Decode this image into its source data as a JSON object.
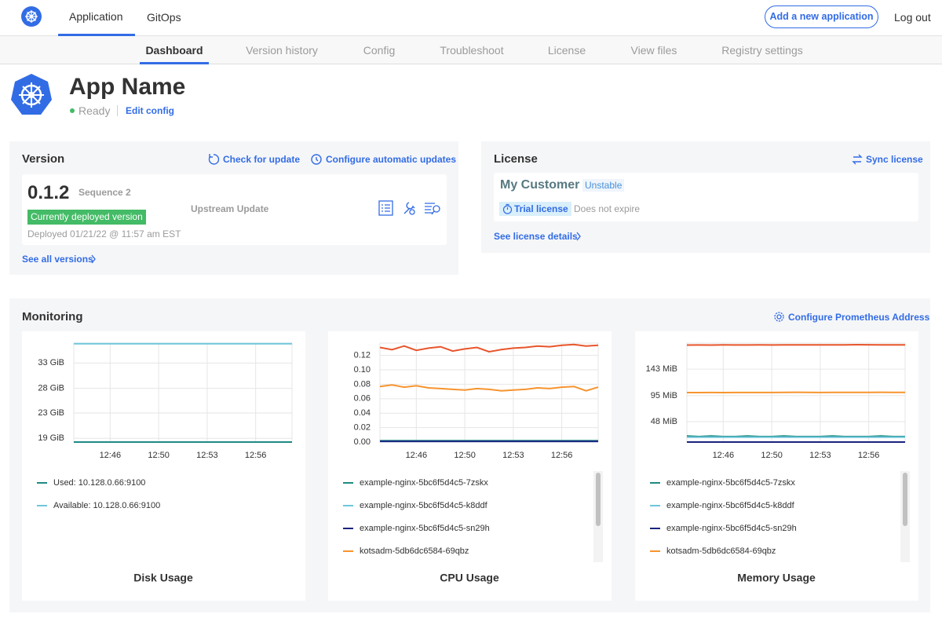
{
  "nav": {
    "tabs": [
      "Application",
      "GitOps"
    ],
    "add_button": "Add a new application",
    "logout": "Log out"
  },
  "subnav": [
    "Dashboard",
    "Version history",
    "Config",
    "Troubleshoot",
    "License",
    "View files",
    "Registry settings"
  ],
  "app": {
    "name": "App Name",
    "status": "Ready",
    "edit": "Edit config"
  },
  "version": {
    "title": "Version",
    "check": "Check for update",
    "configure": "Configure automatic updates",
    "number": "0.1.2",
    "sequence": "Sequence 2",
    "badge": "Currently deployed version",
    "deployed": "Deployed 01/21/22 @ 11:57 am EST",
    "upstream": "Upstream Update",
    "see_all": "See all versions"
  },
  "license": {
    "title": "License",
    "sync": "Sync license",
    "customer": "My Customer",
    "channel": "Unstable",
    "type": "Trial license",
    "expiry": "Does not expire",
    "details": "See license details"
  },
  "monitoring": {
    "title": "Monitoring",
    "configure": "Configure Prometheus Address"
  },
  "chart_data": [
    {
      "type": "line",
      "title": "Disk Usage",
      "grid": true,
      "x": [
        null,
        null,
        null,
        "12:46",
        null,
        null,
        null,
        "12:50",
        null,
        null,
        null,
        "12:53",
        null,
        null,
        null,
        "12:56",
        null,
        null,
        null
      ],
      "ylim": [
        17.9,
        36.3
      ],
      "yticks": [
        {
          "value": 18.6,
          "label": "19 GiB"
        },
        {
          "value": 23.3,
          "label": "23 GiB"
        },
        {
          "value": 27.9,
          "label": "28 GiB"
        },
        {
          "value": 32.6,
          "label": "33 GiB"
        }
      ],
      "series": [
        {
          "name": "Used: 10.128.0.66:9100",
          "color": "#1e8a84",
          "values": [
            17.9,
            17.9,
            17.9,
            17.9,
            17.9,
            17.9,
            17.9,
            17.9,
            17.9,
            17.9,
            17.9,
            17.9,
            17.9,
            17.9,
            17.9,
            17.9,
            17.9,
            17.9,
            17.9
          ]
        },
        {
          "name": "Available: 10.128.0.66:9100",
          "color": "#6ec6d9",
          "values": [
            36.2,
            36.2,
            36.2,
            36.2,
            36.2,
            36.2,
            36.2,
            36.2,
            36.2,
            36.2,
            36.2,
            36.2,
            36.2,
            36.2,
            36.2,
            36.2,
            36.2,
            36.2,
            36.2
          ]
        }
      ]
    },
    {
      "type": "line",
      "title": "CPU Usage",
      "grid": true,
      "x": [
        null,
        null,
        null,
        "12:46",
        null,
        null,
        null,
        "12:50",
        null,
        null,
        null,
        "12:53",
        null,
        null,
        null,
        "12:56",
        null,
        null,
        null
      ],
      "ylim": [
        0,
        0.137
      ],
      "yticks": [
        {
          "value": 0,
          "label": "0.00"
        },
        {
          "value": 0.02,
          "label": "0.02"
        },
        {
          "value": 0.04,
          "label": "0.04"
        },
        {
          "value": 0.06,
          "label": "0.06"
        },
        {
          "value": 0.08,
          "label": "0.08"
        },
        {
          "value": 0.1,
          "label": "0.10"
        },
        {
          "value": 0.12,
          "label": "0.12"
        }
      ],
      "series": [
        {
          "name": "example-nginx-5bc6f5d4c5-7zskx",
          "color": "#1e8a84",
          "values": [
            0.002,
            0.002,
            0.002,
            0.002,
            0.002,
            0.002,
            0.002,
            0.002,
            0.002,
            0.002,
            0.002,
            0.002,
            0.002,
            0.002,
            0.002,
            0.002,
            0.002,
            0.002,
            0.002
          ]
        },
        {
          "name": "example-nginx-5bc6f5d4c5-k8ddf",
          "color": "#6ec6d9",
          "values": [
            0.001,
            0.001,
            0.001,
            0.001,
            0.001,
            0.001,
            0.001,
            0.001,
            0.001,
            0.001,
            0.001,
            0.001,
            0.001,
            0.001,
            0.001,
            0.001,
            0.001,
            0.001,
            0.001
          ]
        },
        {
          "name": "example-nginx-5bc6f5d4c5-sn29h",
          "color": "#1a237e",
          "values": [
            0.001,
            0.001,
            0.001,
            0.001,
            0.001,
            0.001,
            0.001,
            0.001,
            0.001,
            0.001,
            0.001,
            0.001,
            0.001,
            0.001,
            0.001,
            0.001,
            0.001,
            0.001,
            0.001
          ]
        },
        {
          "name": "kotsadm-5db6dc6584-69qbz",
          "color": "#f7942e",
          "values": [
            0.077,
            0.079,
            0.076,
            0.078,
            0.075,
            0.074,
            0.073,
            0.072,
            0.074,
            0.073,
            0.071,
            0.072,
            0.073,
            0.075,
            0.074,
            0.076,
            0.077,
            0.071,
            0.076
          ]
        },
        {
          "color": "#e8552b",
          "values": [
            0.131,
            0.128,
            0.133,
            0.127,
            0.13,
            0.132,
            0.126,
            0.129,
            0.131,
            0.125,
            0.128,
            0.13,
            0.131,
            0.133,
            0.132,
            0.134,
            0.135,
            0.133,
            0.134
          ]
        }
      ]
    },
    {
      "type": "line",
      "title": "Memory Usage",
      "grid": true,
      "x": [
        null,
        null,
        null,
        "12:46",
        null,
        null,
        null,
        "12:50",
        null,
        null,
        null,
        "12:53",
        null,
        null,
        null,
        "12:56",
        null,
        null,
        null
      ],
      "ylim": [
        11,
        190
      ],
      "yticks": [
        {
          "value": 48,
          "label": "48 MiB"
        },
        {
          "value": 95,
          "label": "95 MiB"
        },
        {
          "value": 143,
          "label": "143 MiB"
        }
      ],
      "series": [
        {
          "name": "example-nginx-5bc6f5d4c5-7zskx",
          "color": "#1e8a84",
          "values": [
            22,
            21,
            22,
            21,
            21,
            22,
            21,
            21,
            22,
            21,
            21,
            21,
            22,
            21,
            21,
            21,
            22,
            21,
            21
          ]
        },
        {
          "name": "example-nginx-5bc6f5d4c5-k8ddf",
          "color": "#6ec6d9",
          "values": [
            20,
            20,
            20,
            20,
            20,
            20,
            20,
            20,
            20,
            20,
            20,
            20,
            20,
            20,
            20,
            20,
            20,
            20,
            20
          ]
        },
        {
          "name": "example-nginx-5bc6f5d4c5-sn29h",
          "color": "#1a237e",
          "values": [
            11,
            11,
            11,
            11,
            11,
            11,
            11,
            11,
            11,
            11,
            11,
            11,
            11,
            11,
            11,
            11,
            11,
            11,
            11
          ]
        },
        {
          "name": "kotsadm-5db6dc6584-69qbz",
          "color": "#f7942e",
          "values": [
            100.5,
            100.5,
            100.6,
            100.5,
            100.6,
            100.7,
            100.6,
            100.7,
            100.8,
            101,
            100.8,
            100.7,
            100.8,
            100.9,
            100.8,
            100.9,
            101,
            100.9,
            100.9
          ]
        },
        {
          "color": "#e8552b",
          "values": [
            186.5,
            186.6,
            186.5,
            186.7,
            186.6,
            186.6,
            186.7,
            186.6,
            186.7,
            186.8,
            186.7,
            186.7,
            186.8,
            186.9,
            187.2,
            187,
            186.9,
            186.8,
            186.8
          ]
        }
      ]
    }
  ]
}
